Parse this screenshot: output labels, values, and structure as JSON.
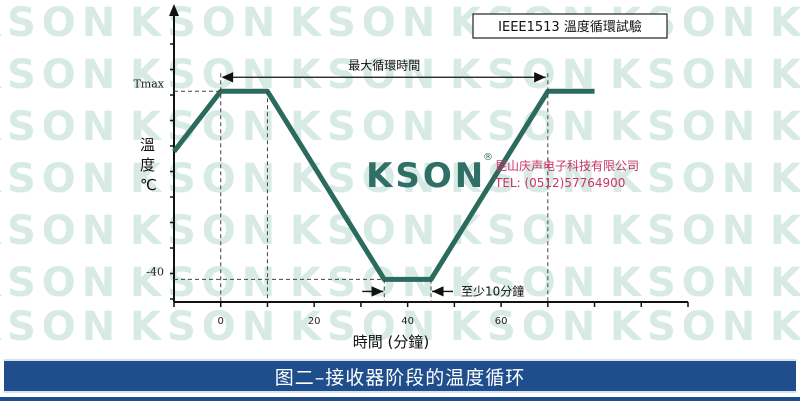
{
  "chart_data": {
    "type": "line",
    "title": "IEEE1513 溫度循環試驗",
    "xlabel": "時間 (分鐘)",
    "ylabel": "溫度 ℃",
    "x_ticks": [
      0,
      20,
      40,
      60
    ],
    "y_tick_labels": [
      {
        "label": "Tmax",
        "value": 85
      },
      {
        "label": "-40",
        "value": -40
      }
    ],
    "xlim": [
      -10,
      100
    ],
    "ylim": [
      -55,
      135
    ],
    "series": [
      {
        "x": [
          -10,
          0,
          10,
          35,
          45,
          70,
          80
        ],
        "y": [
          45,
          85,
          85,
          -40,
          -40,
          85,
          85
        ]
      }
    ],
    "annotations": [
      {
        "text": "最大循環時間",
        "x_start": 0,
        "x_end": 70,
        "at": "Tmax"
      },
      {
        "text": "至少10分鐘",
        "x_start": 35,
        "x_end": 45,
        "at": "-40"
      }
    ],
    "grid": false,
    "line_color": "#2b6b5e"
  },
  "watermark": {
    "brand": "KSON",
    "registered": "®",
    "company": "昆山庆声电子科技有限公司",
    "tel": "TEL: (0512)57764900"
  },
  "caption": "图二–接收器阶段的温度循环",
  "colors": {
    "accent": "#1f4e8c",
    "line": "#2b6b5e",
    "brand": "#2f6f66",
    "company_text": "#cc3366"
  }
}
